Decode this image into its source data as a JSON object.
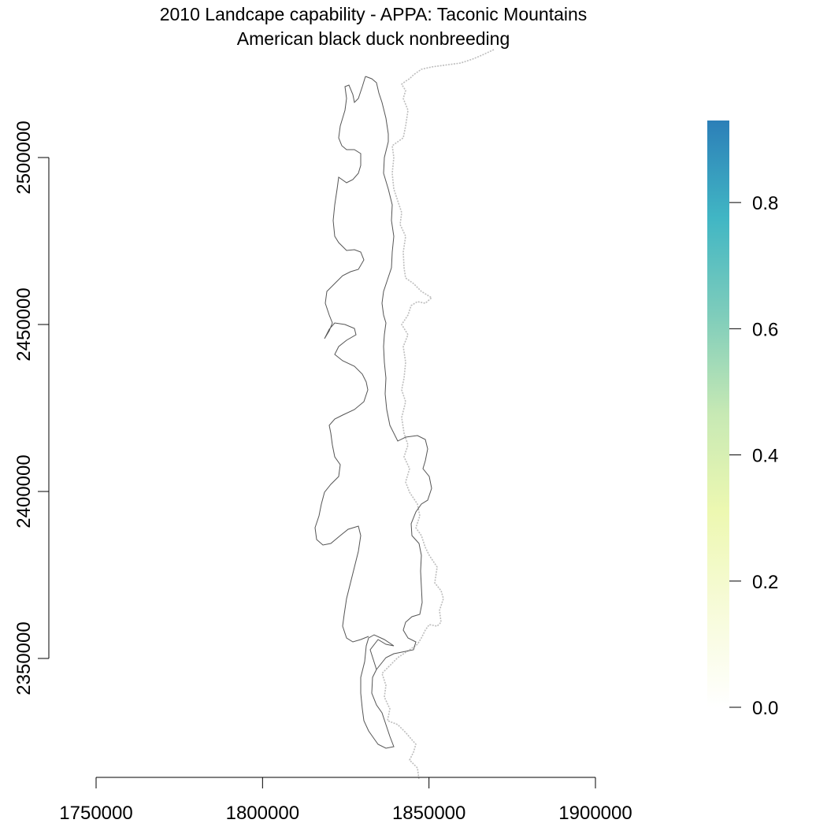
{
  "map": {
    "title_line1": "2010 Landcape capability - APPA: Taconic Mountains",
    "title_line2": "American black duck nonbreeding"
  },
  "chart_data": {
    "type": "heatmap",
    "title": "2010 Landcape capability - APPA: Taconic Mountains",
    "subtitle": "American black duck nonbreeding",
    "x_ticks": [
      1750000,
      1800000,
      1850000,
      1900000
    ],
    "y_ticks": [
      2350000,
      2400000,
      2450000,
      2500000
    ],
    "xlim": [
      1750000,
      1900000
    ],
    "ylim": [
      2350000,
      2500000
    ],
    "legend": {
      "ticks": [
        0.0,
        0.2,
        0.4,
        0.6,
        0.8
      ],
      "tick_labels": [
        "0.0",
        "0.2",
        "0.4",
        "0.6",
        "0.8"
      ],
      "range": [
        0,
        0.93
      ],
      "colors": [
        "#ffffff",
        "#f7fbd9",
        "#edf8b1",
        "#c7e9b4",
        "#7fcdbb",
        "#41b6c4",
        "#2c7fb8"
      ],
      "placement": "right"
    }
  }
}
